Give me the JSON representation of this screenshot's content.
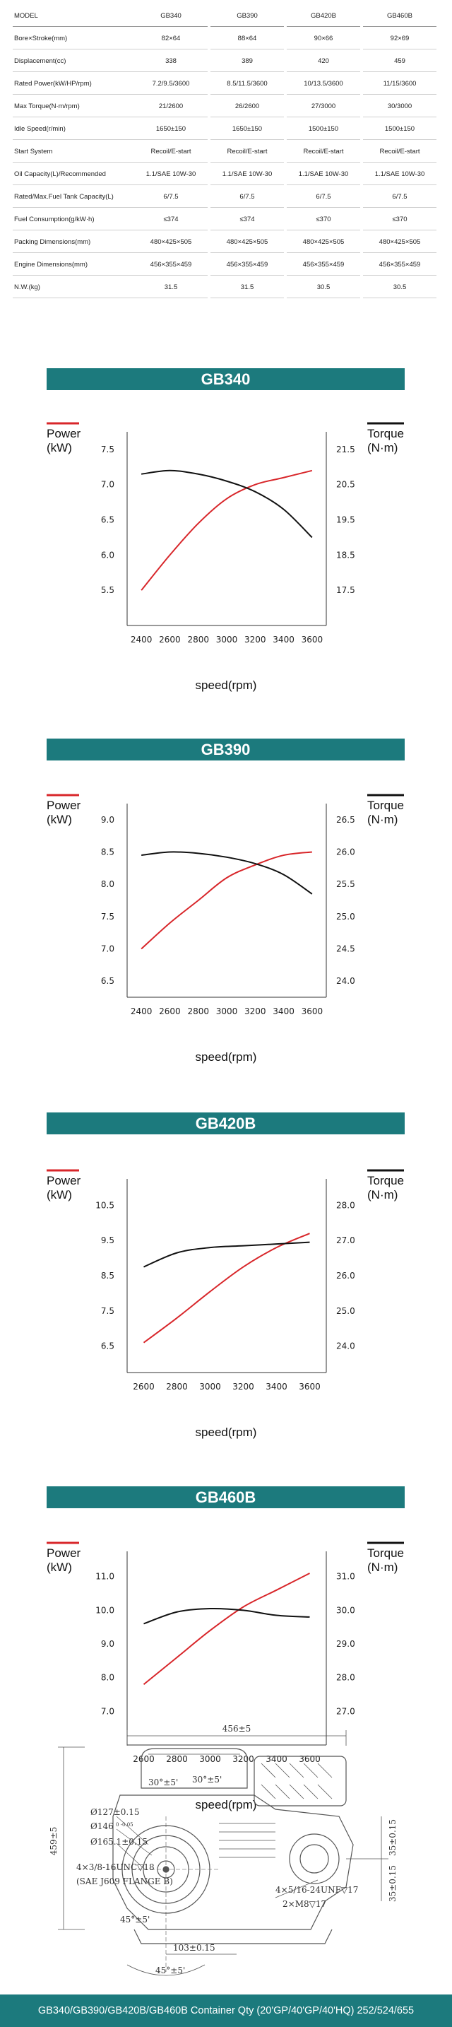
{
  "spec_table": {
    "header": [
      "MODEL",
      "GB340",
      "GB390",
      "GB420B",
      "GB460B"
    ],
    "rows": [
      [
        "Bore×Stroke(mm)",
        "82×64",
        "88×64",
        "90×66",
        "92×69"
      ],
      [
        "Displacement(cc)",
        "338",
        "389",
        "420",
        "459"
      ],
      [
        "Rated Power(kW/HP/rpm)",
        "7.2/9.5/3600",
        "8.5/11.5/3600",
        "10/13.5/3600",
        "11/15/3600"
      ],
      [
        "Max Torque(N·m/rpm)",
        "21/2600",
        "26/2600",
        "27/3000",
        "30/3000"
      ],
      [
        "Idle Speed(r/min)",
        "1650±150",
        "1650±150",
        "1500±150",
        "1500±150"
      ],
      [
        "Start System",
        "Recoil/E-start",
        "Recoil/E-start",
        "Recoil/E-start",
        "Recoil/E-start"
      ],
      [
        "Oil Capacity(L)/Recommended",
        "1.1/SAE 10W-30",
        "1.1/SAE 10W-30",
        "1.1/SAE 10W-30",
        "1.1/SAE 10W-30"
      ],
      [
        "Rated/Max.Fuel Tank Capacity(L)",
        "6/7.5",
        "6/7.5",
        "6/7.5",
        "6/7.5"
      ],
      [
        "Fuel Consumption(g/kW·h)",
        "≤374",
        "≤374",
        "≤370",
        "≤370"
      ],
      [
        "Packing Dimensions(mm)",
        "480×425×505",
        "480×425×505",
        "480×425×505",
        "480×425×505"
      ],
      [
        "Engine Dimensions(mm)",
        "456×355×459",
        "456×355×459",
        "456×355×459",
        "456×355×459"
      ],
      [
        "N.W.(kg)",
        "31.5",
        "31.5",
        "30.5",
        "30.5"
      ]
    ]
  },
  "banners": {
    "gb340": "GB340",
    "gb390": "GB390",
    "gb420b": "GB420B",
    "gb460b": "GB460B"
  },
  "chart_common": {
    "power_label_1": "Power",
    "power_label_2": "(kW)",
    "torque_label_1": "Torque",
    "torque_label_2": "(N·m)",
    "xlabel": "speed(rpm)",
    "power_color": "#d8262a",
    "torque_color": "#111111"
  },
  "chart_data": [
    {
      "type": "line",
      "model": "GB340",
      "x": [
        2400,
        2600,
        2800,
        3000,
        3200,
        3400,
        3600
      ],
      "xticks": [
        "2400",
        "2600",
        "2800",
        "3000",
        "3200",
        "3400",
        "3600"
      ],
      "y_left_ticks": [
        "7.5",
        "7.0",
        "6.5",
        "6.0",
        "5.5"
      ],
      "y_left_range": [
        5.0,
        7.75
      ],
      "y_right_ticks": [
        "21.5",
        "20.5",
        "19.5",
        "18.5",
        "17.5"
      ],
      "y_right_range": [
        16.5,
        22.0
      ],
      "series": [
        {
          "axis": "left",
          "values": [
            5.5,
            6.0,
            6.45,
            6.8,
            7.0,
            7.1,
            7.2
          ]
        },
        {
          "axis": "right",
          "values": [
            20.8,
            20.9,
            20.8,
            20.6,
            20.3,
            19.8,
            19.0
          ]
        }
      ]
    },
    {
      "type": "line",
      "model": "GB390",
      "x": [
        2400,
        2600,
        2800,
        3000,
        3200,
        3400,
        3600
      ],
      "xticks": [
        "2400",
        "2600",
        "2800",
        "3000",
        "3200",
        "3400",
        "3600"
      ],
      "y_left_ticks": [
        "9.0",
        "8.5",
        "8.0",
        "7.5",
        "7.0",
        "6.5"
      ],
      "y_left_range": [
        6.25,
        9.25
      ],
      "y_right_ticks": [
        "26.5",
        "26.0",
        "25.5",
        "25.0",
        "24.5",
        "24.0"
      ],
      "y_right_range": [
        23.75,
        26.75
      ],
      "series": [
        {
          "axis": "left",
          "values": [
            7.0,
            7.4,
            7.75,
            8.1,
            8.3,
            8.45,
            8.5
          ]
        },
        {
          "axis": "right",
          "values": [
            25.95,
            26.0,
            25.98,
            25.92,
            25.82,
            25.65,
            25.35
          ]
        }
      ]
    },
    {
      "type": "line",
      "model": "GB420B",
      "x": [
        2600,
        2800,
        3000,
        3200,
        3400,
        3600
      ],
      "xticks": [
        "2600",
        "2800",
        "3000",
        "3200",
        "3400",
        "3600"
      ],
      "y_left_ticks": [
        "10.5",
        "9.5",
        "8.5",
        "7.5",
        "6.5"
      ],
      "y_left_range": [
        5.75,
        11.25
      ],
      "y_right_ticks": [
        "28.0",
        "27.0",
        "26.0",
        "25.0",
        "24.0"
      ],
      "y_right_range": [
        23.25,
        28.75
      ],
      "series": [
        {
          "axis": "left",
          "values": [
            6.6,
            7.3,
            8.05,
            8.75,
            9.3,
            9.7
          ]
        },
        {
          "axis": "right",
          "values": [
            26.25,
            26.65,
            26.8,
            26.85,
            26.9,
            26.95
          ]
        }
      ]
    },
    {
      "type": "line",
      "model": "GB460B",
      "x": [
        2600,
        2800,
        3000,
        3200,
        3400,
        3600
      ],
      "xticks": [
        "2600",
        "2800",
        "3000",
        "3200",
        "3400",
        "3600"
      ],
      "y_left_ticks": [
        "11.0",
        "10.0",
        "9.0",
        "8.0",
        "7.0"
      ],
      "y_left_range": [
        6.0,
        11.75
      ],
      "y_right_ticks": [
        "31.0",
        "30.0",
        "29.0",
        "28.0",
        "27.0"
      ],
      "y_right_range": [
        26.0,
        31.75
      ],
      "series": [
        {
          "axis": "left",
          "values": [
            7.8,
            8.6,
            9.4,
            10.1,
            10.6,
            11.1
          ]
        },
        {
          "axis": "right",
          "values": [
            29.6,
            29.95,
            30.05,
            30.0,
            29.85,
            29.8
          ]
        }
      ]
    }
  ],
  "drawing": {
    "dims": {
      "width": "456±5",
      "height": "459±5",
      "angle_top_left": "30°±5'",
      "angle_top_right": "30°±5'",
      "dia127": "Ø127±0.15",
      "dia146": "Ø146",
      "dia146_tol": "0\n-0.05",
      "dia165": "Ø165.1±0.15",
      "thread_left": "4×3/8-16UNC▽18",
      "sae": "(SAE J609 FLANGE B)",
      "angle_bottom_1": "45°±5'",
      "angle_bottom_2": "45°±5'",
      "dim103": "103±0.15",
      "thread_right": "4×5/16-24UNF▽17",
      "thread_m8": "2×M8▽17",
      "v35_top": "35±0.15",
      "v35_bottom": "35±0.15"
    }
  },
  "footer": {
    "text": "GB340/GB390/GB420B/GB460B Container Qty (20'GP/40'GP/40'HQ) 252/524/655"
  }
}
